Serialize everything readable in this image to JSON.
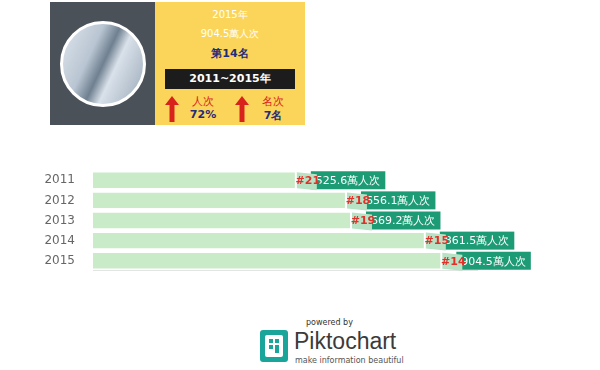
{
  "header": {
    "year": "2015年",
    "value_label": "904.5萬人次",
    "rank_label": "第14名",
    "period": "2011~2015年",
    "changes": [
      {
        "label": "人次",
        "value": "72%"
      },
      {
        "label": "名次",
        "value": "7名"
      }
    ]
  },
  "chart_data": {
    "type": "bar",
    "orientation": "horizontal",
    "categories": [
      "2011",
      "2012",
      "2013",
      "2014",
      "2015"
    ],
    "values": [
      525.6,
      656.1,
      669.2,
      861.5,
      904.5
    ],
    "value_labels": [
      "525.6萬人次",
      "656.1萬人次",
      "669.2萬人次",
      "861.5萬人次",
      "904.5萬人次"
    ],
    "rank_labels": [
      "#21",
      "#18",
      "#19",
      "#15",
      "#14"
    ],
    "color": "#c9ebc8",
    "xlim": [
      0,
      1000
    ],
    "xticks": [],
    "grid": false,
    "data_labels": true,
    "tick_labels": "y"
  },
  "footer": {
    "powered": "powered by",
    "brand": "Piktochart",
    "tagline": "make information beautiful"
  }
}
